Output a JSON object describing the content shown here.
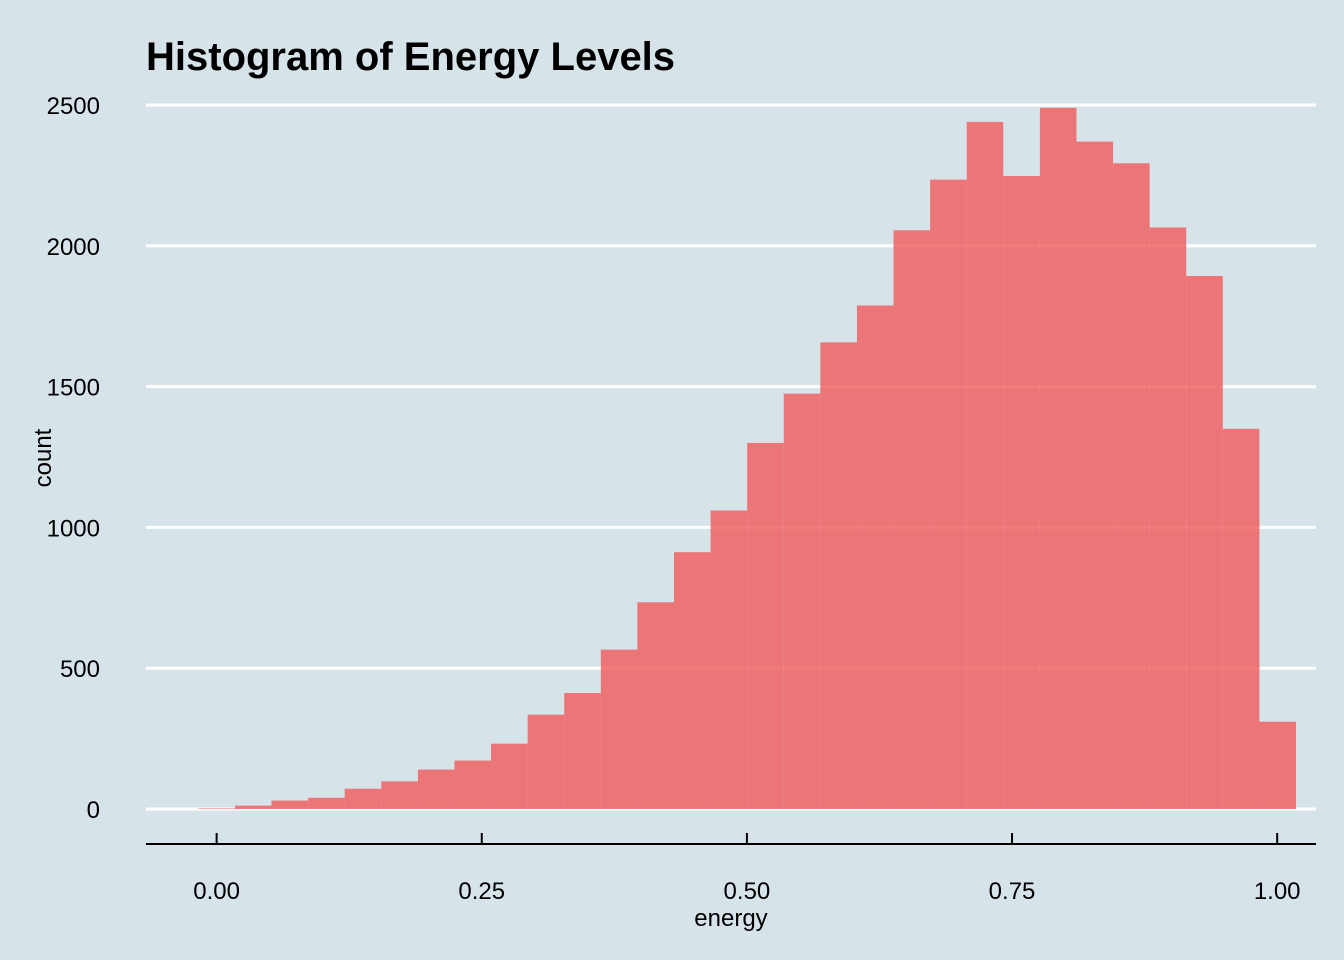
{
  "chart_data": {
    "type": "bar",
    "title": "Histogram of Energy Levels",
    "xlabel": "energy",
    "ylabel": "count",
    "xlim": [
      -0.0666,
      1.0366
    ],
    "ylim": [
      0,
      2500
    ],
    "grid": "horizontal",
    "legend": "none",
    "bar_color": "#f0595a",
    "bar_opacity": 0.8,
    "bin_width": 0.0345,
    "x_ticks": [
      {
        "value": 0.0,
        "label": "0.00"
      },
      {
        "value": 0.25,
        "label": "0.25"
      },
      {
        "value": 0.5,
        "label": "0.50"
      },
      {
        "value": 0.75,
        "label": "0.75"
      },
      {
        "value": 1.0,
        "label": "1.00"
      }
    ],
    "y_ticks": [
      {
        "value": 0,
        "label": "0"
      },
      {
        "value": 500,
        "label": "500"
      },
      {
        "value": 1000,
        "label": "1000"
      },
      {
        "value": 1500,
        "label": "1500"
      },
      {
        "value": 2000,
        "label": "2000"
      },
      {
        "value": 2500,
        "label": "2500"
      }
    ],
    "bins": [
      {
        "x": 0.0,
        "count": 2
      },
      {
        "x": 0.0345,
        "count": 12
      },
      {
        "x": 0.069,
        "count": 30
      },
      {
        "x": 0.1035,
        "count": 40
      },
      {
        "x": 0.138,
        "count": 72
      },
      {
        "x": 0.1725,
        "count": 98
      },
      {
        "x": 0.207,
        "count": 140
      },
      {
        "x": 0.2415,
        "count": 172
      },
      {
        "x": 0.276,
        "count": 232
      },
      {
        "x": 0.3105,
        "count": 335
      },
      {
        "x": 0.345,
        "count": 412
      },
      {
        "x": 0.3795,
        "count": 566
      },
      {
        "x": 0.414,
        "count": 734
      },
      {
        "x": 0.4485,
        "count": 912
      },
      {
        "x": 0.483,
        "count": 1060
      },
      {
        "x": 0.5175,
        "count": 1300
      },
      {
        "x": 0.552,
        "count": 1475
      },
      {
        "x": 0.5865,
        "count": 1657
      },
      {
        "x": 0.621,
        "count": 1788
      },
      {
        "x": 0.6555,
        "count": 2055
      },
      {
        "x": 0.69,
        "count": 2235
      },
      {
        "x": 0.7245,
        "count": 2440
      },
      {
        "x": 0.759,
        "count": 2248
      },
      {
        "x": 0.7935,
        "count": 2490
      },
      {
        "x": 0.828,
        "count": 2370
      },
      {
        "x": 0.8625,
        "count": 2293
      },
      {
        "x": 0.897,
        "count": 2065
      },
      {
        "x": 0.9315,
        "count": 1893
      },
      {
        "x": 0.966,
        "count": 1350
      },
      {
        "x": 1.0005,
        "count": 310
      }
    ]
  }
}
